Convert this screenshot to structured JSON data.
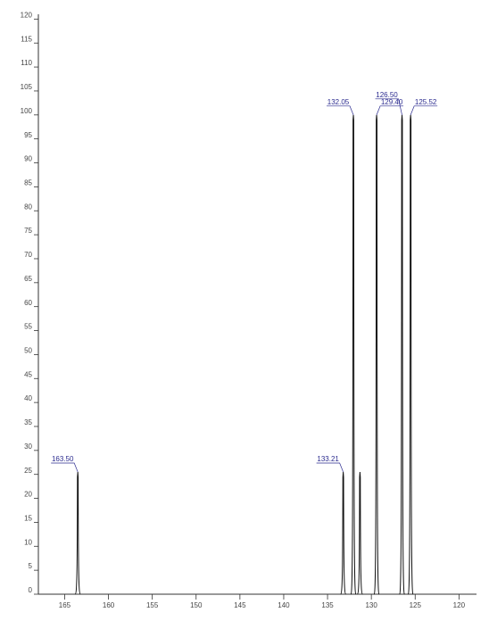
{
  "chart_data": {
    "type": "spectrum",
    "x": [
      163.5,
      133.21,
      132.05,
      131.3,
      129.4,
      126.5,
      125.52
    ],
    "values": [
      25.5,
      25.5,
      100,
      25.5,
      100,
      100,
      100
    ],
    "x_labels": [
      "163.50",
      "133.21",
      "132.05",
      null,
      "129.40",
      "126.50",
      "125.52"
    ],
    "color": "#111111",
    "label_color": "#2b2b8f",
    "xlim": [
      168,
      118
    ],
    "xticks": [
      165,
      160,
      155,
      150,
      145,
      140,
      135,
      130,
      125,
      120
    ],
    "ylim": [
      0,
      121
    ],
    "yticks": [
      0,
      5,
      10,
      15,
      20,
      25,
      30,
      35,
      40,
      45,
      50,
      55,
      60,
      65,
      70,
      75,
      80,
      85,
      90,
      95,
      100,
      105,
      110,
      115,
      120
    ]
  }
}
